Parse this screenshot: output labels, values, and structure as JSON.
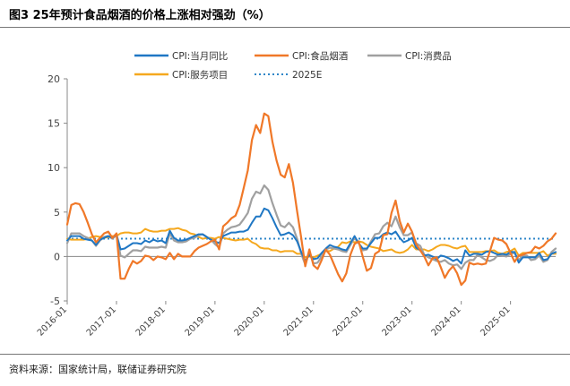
{
  "title": "图3 25年预计食品烟酒的价格上涨相对强劲（%）",
  "source": "资料来源：国家统计局，联储证券研究院",
  "chart_data": {
    "type": "line",
    "ylim": [
      -5,
      20
    ],
    "yticks": [
      -5,
      0,
      5,
      10,
      15,
      20
    ],
    "xticks": [
      "2016-01",
      "2017-01",
      "2018-01",
      "2019-01",
      "2020-01",
      "2021-01",
      "2022-01",
      "2023-01",
      "2024-01",
      "2025-01"
    ],
    "x_start": "2016-01",
    "series": [
      {
        "name": "CPI:当月同比",
        "color": "#1f77c4",
        "style": "solid",
        "width": 2,
        "values": [
          1.8,
          2.3,
          2.3,
          2.3,
          2.0,
          1.9,
          1.8,
          1.3,
          1.9,
          2.1,
          2.3,
          2.1,
          2.5,
          0.8,
          0.9,
          1.2,
          1.5,
          1.5,
          1.4,
          1.8,
          1.6,
          1.9,
          1.7,
          1.8,
          1.5,
          2.9,
          2.1,
          1.8,
          1.8,
          1.9,
          2.1,
          2.3,
          2.5,
          2.5,
          2.2,
          1.9,
          1.7,
          1.5,
          2.3,
          2.5,
          2.7,
          2.7,
          2.8,
          2.8,
          3.0,
          3.8,
          4.5,
          4.5,
          5.4,
          5.2,
          4.3,
          3.3,
          2.4,
          2.5,
          2.7,
          2.4,
          1.7,
          0.5,
          -0.5,
          0.2,
          -0.3,
          -0.2,
          0.4,
          0.9,
          1.3,
          1.1,
          1.0,
          0.8,
          0.7,
          1.5,
          2.3,
          1.5,
          0.9,
          0.9,
          1.5,
          2.1,
          2.1,
          2.5,
          2.7,
          2.5,
          2.8,
          2.1,
          1.6,
          1.8,
          2.1,
          1.0,
          0.7,
          0.1,
          0.2,
          0.0,
          -0.3,
          0.1,
          0.0,
          -0.2,
          -0.5,
          -0.3,
          -0.8,
          0.7,
          0.1,
          0.3,
          0.3,
          0.2,
          0.5,
          0.6,
          0.4,
          0.2,
          0.3,
          0.2,
          0.5,
          0.5,
          -0.7,
          -0.1,
          -0.1,
          -0.1,
          -0.1,
          0.4,
          -0.4,
          -0.3,
          0.3,
          0.5
        ]
      },
      {
        "name": "CPI:食品烟酒",
        "color": "#f07828",
        "style": "solid",
        "width": 2.2,
        "values": [
          3.6,
          5.8,
          6.0,
          5.9,
          5.0,
          3.8,
          2.5,
          1.6,
          2.1,
          2.6,
          2.8,
          2.1,
          2.6,
          -2.5,
          -2.5,
          -1.4,
          -0.5,
          -0.8,
          -0.5,
          0.1,
          0.0,
          -0.4,
          0.0,
          -0.1,
          -0.3,
          0.4,
          -0.3,
          0.3,
          0.0,
          0.0,
          0.0,
          0.6,
          1.0,
          1.2,
          1.4,
          1.7,
          1.9,
          0.8,
          3.4,
          3.8,
          4.3,
          4.6,
          5.8,
          7.7,
          9.7,
          13.1,
          14.8,
          13.9,
          16.1,
          15.8,
          12.9,
          10.8,
          9.2,
          8.9,
          10.4,
          8.3,
          5.1,
          2.1,
          -1.1,
          0.8,
          -1.0,
          -1.4,
          -0.4,
          0.8,
          0.2,
          -0.9,
          -2.0,
          -2.8,
          -1.9,
          0.2,
          1.4,
          1.7,
          0.0,
          -1.6,
          -1.3,
          0.3,
          0.6,
          2.4,
          2.5,
          4.9,
          6.3,
          4.0,
          2.7,
          3.7,
          2.8,
          1.4,
          0.7,
          0.0,
          -1.0,
          -0.2,
          -0.1,
          -1.2,
          -2.4,
          -1.6,
          -1.1,
          -1.9,
          -3.2,
          -2.7,
          -0.7,
          -0.9,
          -0.8,
          -0.9,
          -0.8,
          0.6,
          2.1,
          1.9,
          1.8,
          1.4,
          0.4,
          -0.6,
          0.1,
          0.2,
          0.4,
          0.5,
          1.1,
          0.9,
          1.2,
          1.7,
          2.0,
          2.6
        ]
      },
      {
        "name": "CPI:消费品",
        "color": "#a0a0a0",
        "style": "solid",
        "width": 2.2,
        "values": [
          1.5,
          2.6,
          2.6,
          2.6,
          2.3,
          2.1,
          1.8,
          1.2,
          1.8,
          2.2,
          2.3,
          2.0,
          2.4,
          0.1,
          -0.1,
          0.3,
          0.7,
          0.7,
          0.6,
          1.1,
          1.0,
          1.0,
          1.0,
          1.1,
          1.0,
          2.6,
          1.8,
          1.6,
          1.6,
          1.7,
          2.0,
          2.1,
          2.4,
          2.5,
          2.2,
          1.9,
          1.4,
          1.0,
          2.6,
          3.0,
          3.3,
          3.4,
          3.6,
          4.2,
          4.9,
          6.5,
          7.3,
          7.1,
          8.0,
          7.5,
          6.0,
          4.7,
          3.5,
          3.3,
          3.8,
          3.3,
          2.0,
          0.3,
          -0.9,
          0.5,
          -0.8,
          -0.7,
          0.0,
          0.8,
          1.0,
          0.9,
          0.8,
          0.6,
          0.5,
          1.3,
          2.1,
          1.5,
          0.7,
          0.8,
          1.7,
          2.5,
          2.6,
          3.4,
          3.8,
          3.4,
          4.5,
          3.3,
          2.4,
          2.4,
          2.7,
          1.5,
          1.2,
          0.2,
          -0.1,
          -0.3,
          -0.5,
          -0.6,
          -0.4,
          -0.8,
          -1.0,
          -0.9,
          -1.4,
          -0.7,
          -0.4,
          -0.4,
          0.2,
          -0.1,
          -0.4,
          -0.5,
          -0.3,
          0.2,
          0.1,
          0.0,
          0.3,
          0.4,
          -0.4,
          0.1,
          0.1,
          -0.4,
          -0.3,
          0.1,
          -0.6,
          -0.4,
          0.5,
          0.9
        ]
      },
      {
        "name": "CPI:服务项目",
        "color": "#f5a81e",
        "style": "solid",
        "width": 2,
        "values": [
          2.0,
          1.9,
          1.9,
          1.9,
          1.9,
          2.0,
          2.2,
          2.3,
          2.2,
          2.1,
          2.2,
          2.3,
          2.3,
          2.6,
          2.7,
          2.7,
          2.6,
          2.6,
          2.7,
          3.1,
          2.9,
          2.8,
          2.8,
          2.9,
          2.9,
          3.1,
          3.1,
          3.2,
          3.0,
          2.9,
          2.6,
          2.5,
          2.2,
          2.0,
          2.1,
          2.1,
          2.0,
          2.2,
          2.1,
          2.0,
          1.9,
          1.8,
          1.9,
          1.9,
          2.0,
          1.6,
          1.4,
          1.0,
          0.9,
          0.9,
          0.7,
          0.7,
          0.5,
          0.6,
          0.6,
          0.6,
          0.3,
          0.3,
          -0.1,
          0.0,
          -0.1,
          0.1,
          0.3,
          0.6,
          0.6,
          0.9,
          1.1,
          1.6,
          1.5,
          1.7,
          1.6,
          1.7,
          1.6,
          1.3,
          1.1,
          1.0,
          0.9,
          0.6,
          0.7,
          0.8,
          0.5,
          0.4,
          0.5,
          0.8,
          1.3,
          0.8,
          0.8,
          0.8,
          0.6,
          0.8,
          1.1,
          1.3,
          1.3,
          1.2,
          1.0,
          0.9,
          1.1,
          1.2,
          0.5,
          0.5,
          0.5,
          0.5,
          0.6,
          0.6,
          0.7,
          0.4,
          0.3,
          0.5,
          0.6,
          0.9,
          0.1,
          0.4,
          0.4,
          0.4,
          0.4,
          0.4,
          0.6,
          0.1,
          0.3,
          0.3
        ]
      },
      {
        "name": "2025E",
        "color": "#2e86c8",
        "style": "dotted",
        "width": 2,
        "constant": 2
      }
    ]
  }
}
